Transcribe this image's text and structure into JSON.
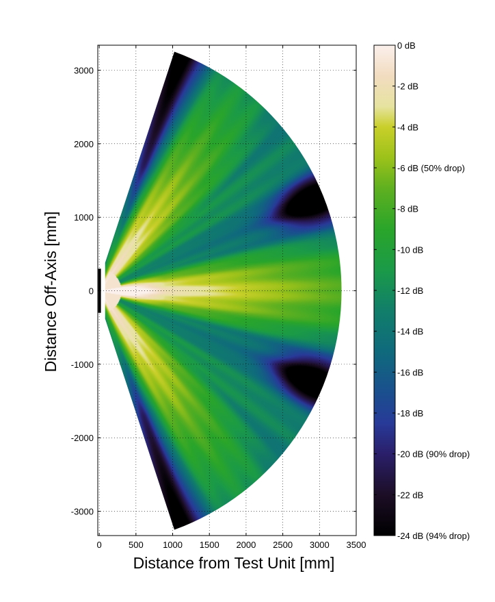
{
  "chart_data": {
    "type": "heatmap",
    "title": "",
    "xlabel": "Distance from Test Unit [mm]",
    "ylabel": "Distance Off-Axis [mm]",
    "xlim": [
      -20,
      3500
    ],
    "ylim": [
      -3330,
      3340
    ],
    "x_ticks": [
      0,
      500,
      1000,
      1500,
      2000,
      2500,
      3000,
      3500
    ],
    "y_ticks": [
      -3000,
      -2000,
      -1000,
      0,
      1000,
      2000,
      3000
    ],
    "grid": true,
    "sector": {
      "apex_x": -160,
      "apex_y": 0,
      "radius": 3460,
      "inner_edge_x": 80,
      "half_angle_deg": 70
    },
    "source_marker": {
      "x": 0,
      "y_from": -300,
      "y_to": 300,
      "color": "#000000"
    },
    "colorbar": {
      "ticks": [
        {
          "value": 0,
          "label": "0 dB"
        },
        {
          "value": -2,
          "label": "-2 dB"
        },
        {
          "value": -4,
          "label": "-4 dB"
        },
        {
          "value": -6,
          "label": "-6 dB (50% drop)"
        },
        {
          "value": -8,
          "label": "-8 dB"
        },
        {
          "value": -10,
          "label": "-10 dB"
        },
        {
          "value": -12,
          "label": "-12 dB"
        },
        {
          "value": -14,
          "label": "-14 dB"
        },
        {
          "value": -16,
          "label": "-16 dB"
        },
        {
          "value": -18,
          "label": "-18 dB"
        },
        {
          "value": -20,
          "label": "-20 dB (90% drop)"
        },
        {
          "value": -22,
          "label": "-22 dB"
        },
        {
          "value": -24,
          "label": "-24 dB (94% drop)"
        }
      ],
      "range": [
        -24,
        0
      ],
      "colors": [
        {
          "value": 0,
          "color": "#fbf0ec"
        },
        {
          "value": -1.5,
          "color": "#f2dcc0"
        },
        {
          "value": -3,
          "color": "#e6e3a0"
        },
        {
          "value": -4,
          "color": "#c9cf2a"
        },
        {
          "value": -5.5,
          "color": "#9cc21a"
        },
        {
          "value": -7,
          "color": "#5fb020"
        },
        {
          "value": -9,
          "color": "#2aa52a"
        },
        {
          "value": -11,
          "color": "#1b9a48"
        },
        {
          "value": -13,
          "color": "#117e6a"
        },
        {
          "value": -15,
          "color": "#0f6a7c"
        },
        {
          "value": -17,
          "color": "#1a4f8e"
        },
        {
          "value": -18.5,
          "color": "#283a98"
        },
        {
          "value": -20,
          "color": "#2a1f6a"
        },
        {
          "value": -22,
          "color": "#1c0e26"
        },
        {
          "value": -24,
          "color": "#000000"
        }
      ]
    },
    "field_features": {
      "main_lobe_peak_db": 0,
      "side_lobe_angle_deg": 55,
      "null_angle_deg": 23,
      "null_depth_db": -24
    }
  }
}
